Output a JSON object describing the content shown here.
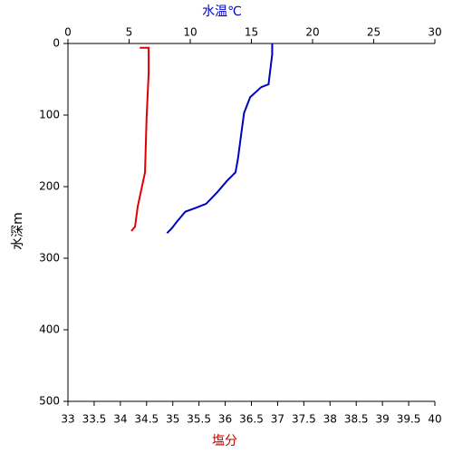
{
  "chart_data": {
    "type": "line",
    "xlabel": "塩分",
    "xlabel_color": "#c00000",
    "x2label": "水温℃",
    "x2label_color": "#0000c0",
    "ylabel": "水深m",
    "xlim": [
      33,
      40
    ],
    "xticks": [
      33,
      33.5,
      34,
      34.5,
      35,
      35.5,
      36,
      36.5,
      37,
      37.5,
      38,
      38.5,
      39,
      39.5,
      40
    ],
    "x2lim": [
      0,
      30
    ],
    "x2ticks": [
      0,
      5,
      10,
      15,
      20,
      25,
      30
    ],
    "ylim": [
      0,
      500
    ],
    "yticks": [
      0,
      100,
      200,
      300,
      400,
      500
    ],
    "y_inverted": true,
    "series": [
      {
        "axis": "x",
        "color": "#e00000",
        "x": [
          34.37,
          34.54,
          34.54,
          34.5,
          34.47,
          34.38,
          34.33,
          34.28,
          34.21
        ],
        "y": [
          6,
          6,
          41,
          104,
          180,
          211,
          228,
          256,
          262
        ]
      },
      {
        "axis": "x2",
        "color": "#0000c0",
        "x": [
          16.7,
          16.7,
          16.4,
          15.8,
          14.9,
          14.4,
          14.1,
          13.9,
          13.7,
          13.0,
          12.2,
          11.3,
          10.4,
          9.6,
          8.9,
          8.5,
          8.1
        ],
        "y": [
          0,
          15,
          57,
          61,
          75,
          97,
          135,
          161,
          180,
          192,
          208,
          224,
          230,
          235,
          249,
          258,
          265
        ]
      }
    ]
  }
}
